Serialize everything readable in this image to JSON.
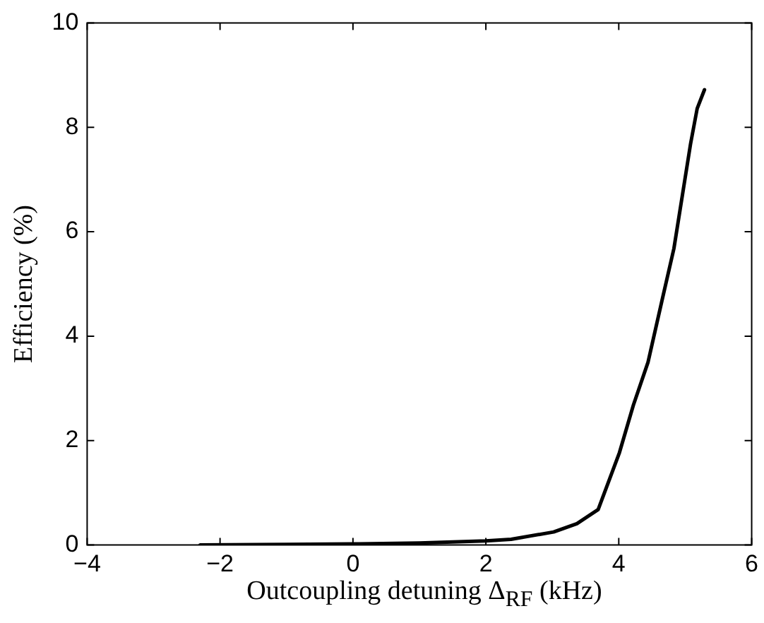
{
  "chart_data": {
    "type": "line",
    "xlabel": "Outcoupling detuning Δ$_{RF}$ (kHz)",
    "ylabel": "Efficiency (%)",
    "series": [
      {
        "color": "#000000",
        "x": [
          -2.3,
          -1,
          0,
          1,
          2,
          2.38,
          3.02,
          3.37,
          3.69,
          4.01,
          4.22,
          4.44,
          4.65,
          4.83,
          5.08,
          5.18,
          5.29
        ],
        "values": [
          0,
          0.01,
          0.02,
          0.04,
          0.08,
          0.11,
          0.25,
          0.41,
          0.68,
          1.77,
          2.68,
          3.5,
          4.68,
          5.68,
          7.68,
          8.36,
          8.72
        ]
      }
    ],
    "xlim": [
      -4,
      6
    ],
    "xticks": [
      -4,
      -2,
      0,
      2,
      4,
      6
    ],
    "ylim": [
      0,
      10
    ],
    "yticks": [
      0,
      2,
      4,
      6,
      8,
      10
    ],
    "grid": false,
    "legend": false,
    "marker": "none",
    "line_style": "solid"
  }
}
